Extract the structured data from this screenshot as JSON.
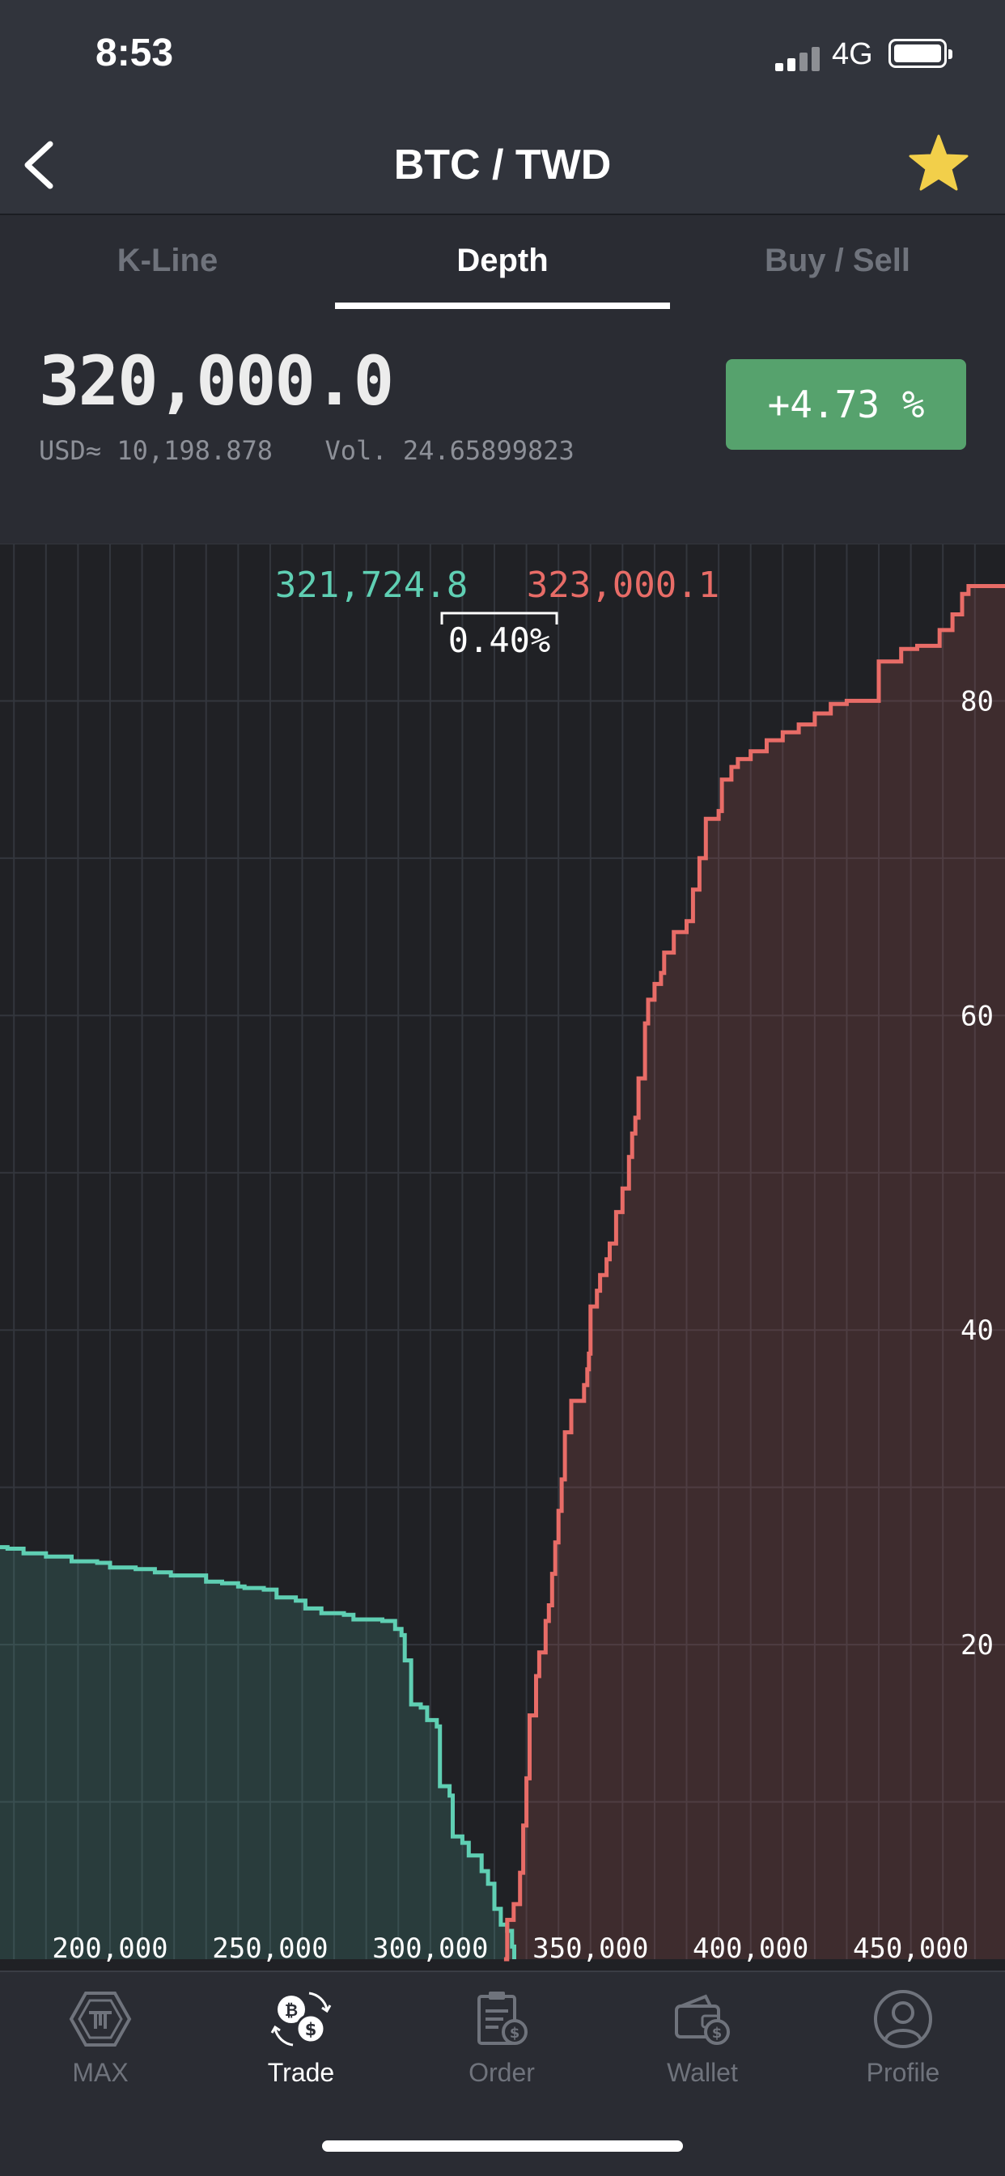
{
  "status_bar": {
    "time": "8:53",
    "network": "4G"
  },
  "nav": {
    "title": "BTC / TWD"
  },
  "tabs": [
    {
      "label": "K-Line",
      "active": false
    },
    {
      "label": "Depth",
      "active": true
    },
    {
      "label": "Buy / Sell",
      "active": false
    }
  ],
  "ticker": {
    "price": "320,000.0",
    "usd_label": "USD≈",
    "usd_value": "10,198.878",
    "vol_label": "Vol.",
    "vol_value": "24.65899823",
    "change": "+4.73 %"
  },
  "colors": {
    "bid": "#5fcfb3",
    "ask": "#e86c67",
    "change_badge": "#56a26d",
    "star": "#f2cf4a"
  },
  "chart_data": {
    "type": "area",
    "bid_price_label": "321,724.8",
    "ask_price_label": "323,000.1",
    "spread_label": "0.40%",
    "x_ticks": [
      {
        "value": 200000,
        "label": "200,000"
      },
      {
        "value": 250000,
        "label": "250,000"
      },
      {
        "value": 300000,
        "label": "300,000"
      },
      {
        "value": 350000,
        "label": "350,000"
      },
      {
        "value": 400000,
        "label": "400,000"
      },
      {
        "value": 450000,
        "label": "450,000"
      }
    ],
    "y_ticks": [
      {
        "value": 20,
        "label": "20"
      },
      {
        "value": 40,
        "label": "40"
      },
      {
        "value": 60,
        "label": "60"
      },
      {
        "value": 80,
        "label": "80"
      }
    ],
    "xlim": [
      165650,
      479400
    ],
    "ylim": [
      0,
      90
    ],
    "grid": true,
    "series": [
      {
        "side": "bid",
        "points": [
          [
            165650,
            26.2
          ],
          [
            168000,
            26.1
          ],
          [
            173000,
            25.8
          ],
          [
            180000,
            25.6
          ],
          [
            188000,
            25.3
          ],
          [
            196000,
            25.2
          ],
          [
            200000,
            24.9
          ],
          [
            208000,
            24.8
          ],
          [
            214000,
            24.6
          ],
          [
            219000,
            24.4
          ],
          [
            224000,
            24.4
          ],
          [
            230000,
            24.0
          ],
          [
            235000,
            23.9
          ],
          [
            240000,
            23.7
          ],
          [
            242000,
            23.6
          ],
          [
            248000,
            23.5
          ],
          [
            252000,
            23.0
          ],
          [
            258000,
            22.8
          ],
          [
            261000,
            22.3
          ],
          [
            266000,
            22.0
          ],
          [
            273000,
            21.9
          ],
          [
            276000,
            21.6
          ],
          [
            285000,
            21.5
          ],
          [
            289000,
            21.0
          ],
          [
            291000,
            20.6
          ],
          [
            292000,
            19.0
          ],
          [
            294000,
            16.2
          ],
          [
            297000,
            16.0
          ],
          [
            299000,
            15.2
          ],
          [
            302000,
            14.8
          ],
          [
            303000,
            11.0
          ],
          [
            306000,
            10.4
          ],
          [
            307000,
            7.8
          ],
          [
            310000,
            7.4
          ],
          [
            312000,
            6.6
          ],
          [
            316000,
            5.6
          ],
          [
            318000,
            4.8
          ],
          [
            320000,
            3.2
          ],
          [
            322000,
            2.2
          ],
          [
            324000,
            1.8
          ],
          [
            325500,
            0.8
          ],
          [
            326200,
            0.0
          ]
        ]
      },
      {
        "side": "ask",
        "points": [
          [
            323000,
            0.0
          ],
          [
            324000,
            2.5
          ],
          [
            326000,
            3.5
          ],
          [
            328000,
            5.5
          ],
          [
            329000,
            8.5
          ],
          [
            330000,
            11.5
          ],
          [
            331000,
            15.5
          ],
          [
            333000,
            18.0
          ],
          [
            334000,
            19.5
          ],
          [
            336000,
            21.5
          ],
          [
            337000,
            22.5
          ],
          [
            338000,
            24.5
          ],
          [
            339000,
            26.5
          ],
          [
            340000,
            28.5
          ],
          [
            341000,
            30.5
          ],
          [
            342000,
            33.5
          ],
          [
            344000,
            35.5
          ],
          [
            348000,
            36.5
          ],
          [
            349000,
            37.5
          ],
          [
            349500,
            38.5
          ],
          [
            350000,
            41.5
          ],
          [
            352000,
            42.5
          ],
          [
            353000,
            43.5
          ],
          [
            355000,
            44.5
          ],
          [
            356000,
            45.5
          ],
          [
            358000,
            47.5
          ],
          [
            360000,
            49.0
          ],
          [
            362000,
            51.0
          ],
          [
            363000,
            52.5
          ],
          [
            364000,
            53.5
          ],
          [
            365000,
            56.0
          ],
          [
            367000,
            59.5
          ],
          [
            368000,
            61.0
          ],
          [
            370000,
            62.0
          ],
          [
            372000,
            62.7
          ],
          [
            373000,
            64.0
          ],
          [
            376000,
            65.3
          ],
          [
            380000,
            66.0
          ],
          [
            382000,
            68.0
          ],
          [
            384000,
            70.0
          ],
          [
            386000,
            72.5
          ],
          [
            390000,
            73.0
          ],
          [
            391000,
            75.0
          ],
          [
            394000,
            75.8
          ],
          [
            396000,
            76.3
          ],
          [
            400000,
            76.8
          ],
          [
            405000,
            77.5
          ],
          [
            410000,
            78.0
          ],
          [
            415000,
            78.5
          ],
          [
            420000,
            79.2
          ],
          [
            425000,
            79.8
          ],
          [
            430000,
            80.0
          ],
          [
            440000,
            82.5
          ],
          [
            447000,
            83.3
          ],
          [
            452000,
            83.5
          ],
          [
            459000,
            84.5
          ],
          [
            463000,
            85.5
          ],
          [
            466000,
            86.8
          ],
          [
            468000,
            87.3
          ],
          [
            479400,
            87.3
          ]
        ]
      }
    ]
  },
  "bottom_nav": [
    {
      "icon": "max-logo-icon",
      "label": "MAX",
      "active": false
    },
    {
      "icon": "trade-coins-icon",
      "label": "Trade",
      "active": true
    },
    {
      "icon": "order-clipboard-icon",
      "label": "Order",
      "active": false
    },
    {
      "icon": "wallet-icon",
      "label": "Wallet",
      "active": false
    },
    {
      "icon": "profile-icon",
      "label": "Profile",
      "active": false
    }
  ]
}
